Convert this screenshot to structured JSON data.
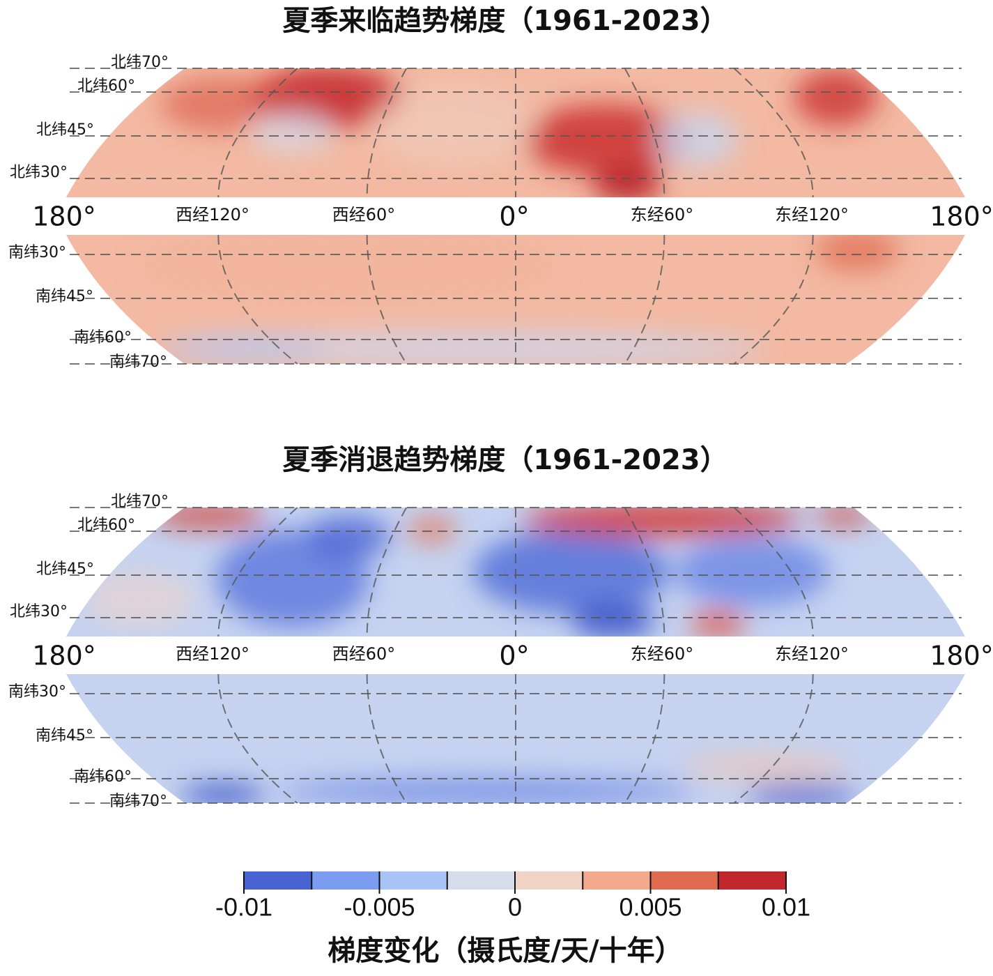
{
  "maps": [
    {
      "title": "夏季来临趋势梯度（1961-2023）",
      "north_labels": [
        "北纬70°",
        "北纬60°",
        "北纬45°",
        "北纬30°"
      ],
      "lon_labels": [
        "180°",
        "西经120°",
        "西经60°",
        "0°",
        "东经60°",
        "东经120°",
        "180°"
      ],
      "south_labels": [
        "南纬30°",
        "南纬45°",
        "南纬60°",
        "南纬70°"
      ]
    },
    {
      "title": "夏季消退趋势梯度（1961-2023）",
      "north_labels": [
        "北纬70°",
        "北纬60°",
        "北纬45°",
        "北纬30°"
      ],
      "lon_labels": [
        "180°",
        "西经120°",
        "西经60°",
        "0°",
        "东经60°",
        "东经120°",
        "180°"
      ],
      "south_labels": [
        "南纬30°",
        "南纬45°",
        "南纬60°",
        "南纬70°"
      ]
    }
  ],
  "colorbar": {
    "range": [
      -0.01,
      0.01
    ],
    "ticks": [
      -0.01,
      -0.005,
      0,
      0.005,
      0.01
    ],
    "levels": [
      -0.01,
      -0.0075,
      -0.005,
      -0.0025,
      0,
      0.0025,
      0.005,
      0.0075,
      0.01
    ],
    "colors": [
      "#4a63d3",
      "#7b9cf0",
      "#a8c4f6",
      "#d6dcea",
      "#efd3c5",
      "#f2a98c",
      "#e06a4f",
      "#c1282d"
    ],
    "label": "梯度变化（摄氏度/天/十年）"
  }
}
